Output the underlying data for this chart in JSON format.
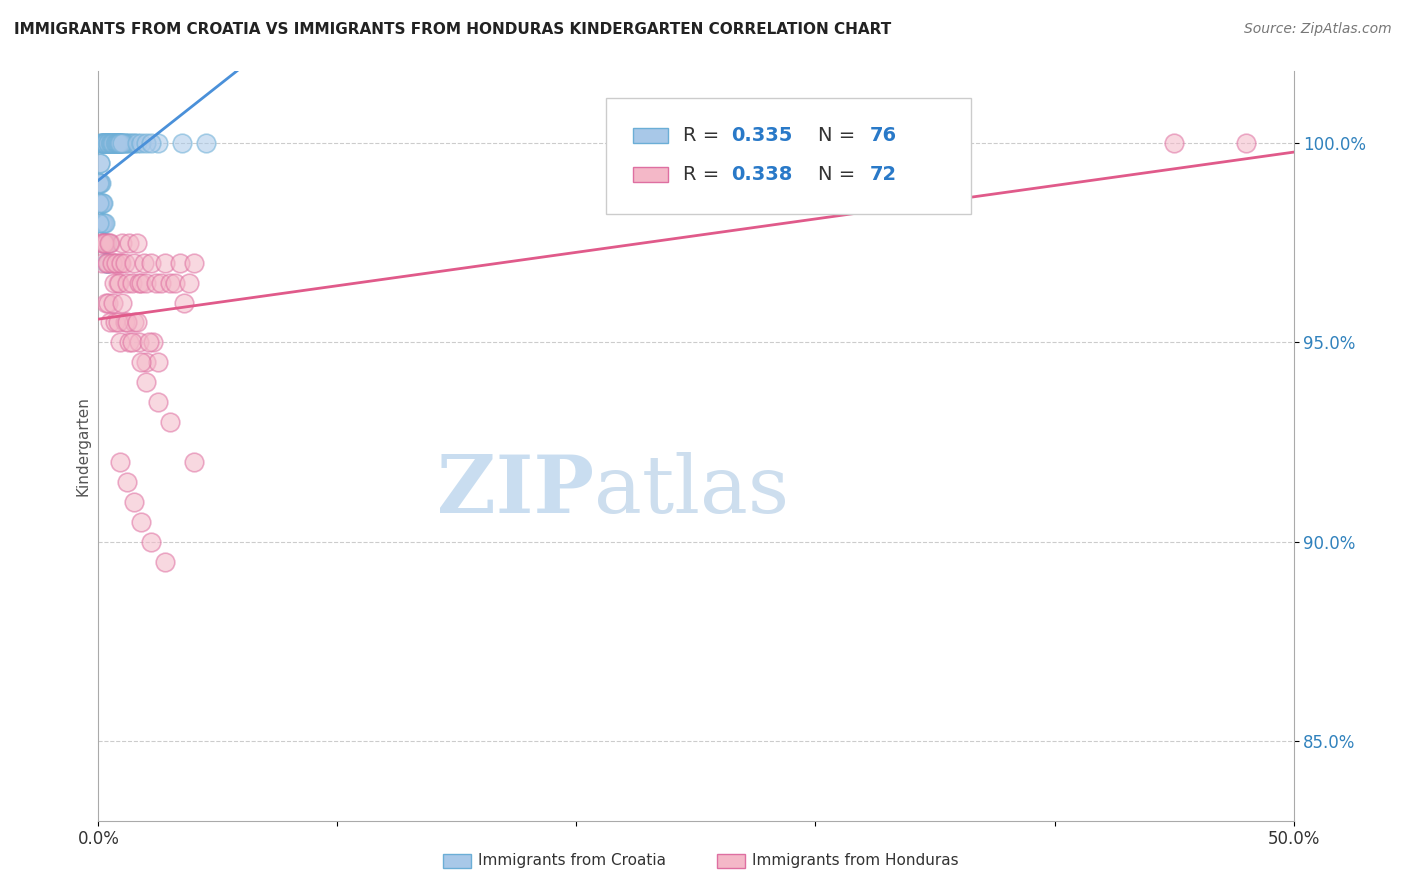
{
  "title": "IMMIGRANTS FROM CROATIA VS IMMIGRANTS FROM HONDURAS KINDERGARTEN CORRELATION CHART",
  "source": "Source: ZipAtlas.com",
  "ylabel": "Kindergarten",
  "x_min": 0.0,
  "x_max": 50.0,
  "y_min": 83.0,
  "y_max": 101.8,
  "y_ticks": [
    85.0,
    90.0,
    95.0,
    100.0
  ],
  "y_tick_labels": [
    "85.0%",
    "90.0%",
    "95.0%",
    "100.0%"
  ],
  "x_ticks": [
    0.0,
    10.0,
    20.0,
    30.0,
    40.0,
    50.0
  ],
  "x_tick_labels": [
    "0.0%",
    "",
    "",
    "",
    "",
    "50.0%"
  ],
  "croatia_color": "#a8c8e8",
  "croatia_edge_color": "#6baed6",
  "honduras_color": "#f4b8c8",
  "honduras_edge_color": "#de6fa1",
  "croatia_line_color": "#4a90d9",
  "honduras_line_color": "#e05a8a",
  "watermark_zip_color": "#c8dff0",
  "watermark_atlas_color": "#b8cfe8",
  "legend_r_color": "#333333",
  "legend_val_color": "#2979c8",
  "croatia_x": [
    0.2,
    0.3,
    0.4,
    0.5,
    0.6,
    0.7,
    0.8,
    0.9,
    1.0,
    1.1,
    1.2,
    1.3,
    1.4,
    1.5,
    0.1,
    0.15,
    0.25,
    0.35,
    0.45,
    0.55,
    0.65,
    0.75,
    0.85,
    0.95,
    1.05,
    0.12,
    0.18,
    0.22,
    0.28,
    0.32,
    0.38,
    0.42,
    0.48,
    0.52,
    0.58,
    0.62,
    0.68,
    0.72,
    0.78,
    0.82,
    0.88,
    0.92,
    0.98,
    0.05,
    0.06,
    0.07,
    0.08,
    0.09,
    0.11,
    0.13,
    0.14,
    0.16,
    0.17,
    0.19,
    0.21,
    0.23,
    0.24,
    0.26,
    0.27,
    0.29,
    0.31,
    0.33,
    0.36,
    0.37,
    0.39,
    2.5,
    3.5,
    4.5,
    0.04,
    0.03,
    0.02,
    1.6,
    1.8,
    2.0,
    2.2
  ],
  "croatia_y": [
    100.0,
    100.0,
    100.0,
    100.0,
    100.0,
    100.0,
    100.0,
    100.0,
    100.0,
    100.0,
    100.0,
    100.0,
    100.0,
    100.0,
    100.0,
    100.0,
    100.0,
    100.0,
    100.0,
    100.0,
    100.0,
    100.0,
    100.0,
    100.0,
    100.0,
    100.0,
    100.0,
    100.0,
    100.0,
    100.0,
    100.0,
    100.0,
    100.0,
    100.0,
    100.0,
    100.0,
    100.0,
    100.0,
    100.0,
    100.0,
    100.0,
    100.0,
    100.0,
    99.5,
    99.0,
    99.5,
    99.0,
    98.5,
    99.0,
    98.5,
    98.0,
    98.5,
    98.0,
    98.5,
    98.0,
    97.5,
    98.0,
    97.5,
    98.0,
    97.5,
    97.0,
    97.5,
    97.0,
    97.5,
    97.0,
    100.0,
    100.0,
    100.0,
    98.0,
    98.5,
    99.0,
    100.0,
    100.0,
    100.0,
    100.0
  ],
  "honduras_x": [
    0.1,
    0.2,
    0.3,
    0.4,
    0.5,
    0.6,
    0.7,
    0.8,
    0.9,
    1.0,
    0.15,
    0.25,
    0.35,
    0.45,
    0.55,
    0.65,
    0.75,
    0.85,
    0.95,
    1.1,
    1.2,
    1.3,
    1.4,
    1.5,
    1.6,
    1.7,
    1.8,
    1.9,
    2.0,
    2.2,
    2.4,
    2.6,
    2.8,
    3.0,
    3.2,
    3.4,
    3.6,
    3.8,
    4.0,
    0.3,
    0.5,
    0.7,
    0.9,
    1.1,
    1.3,
    1.5,
    1.7,
    2.0,
    2.3,
    0.4,
    0.6,
    0.8,
    1.0,
    1.2,
    1.4,
    1.6,
    2.1,
    2.5,
    1.8,
    2.0,
    2.5,
    3.0,
    4.0,
    0.9,
    1.2,
    1.5,
    1.8,
    2.2,
    2.8,
    45.0,
    48.0
  ],
  "honduras_y": [
    97.5,
    97.5,
    97.5,
    97.0,
    97.5,
    97.0,
    97.0,
    96.5,
    97.0,
    97.5,
    97.0,
    97.5,
    97.0,
    97.5,
    97.0,
    96.5,
    97.0,
    96.5,
    97.0,
    97.0,
    96.5,
    97.5,
    96.5,
    97.0,
    97.5,
    96.5,
    96.5,
    97.0,
    96.5,
    97.0,
    96.5,
    96.5,
    97.0,
    96.5,
    96.5,
    97.0,
    96.0,
    96.5,
    97.0,
    96.0,
    95.5,
    95.5,
    95.0,
    95.5,
    95.0,
    95.5,
    95.0,
    94.5,
    95.0,
    96.0,
    96.0,
    95.5,
    96.0,
    95.5,
    95.0,
    95.5,
    95.0,
    94.5,
    94.5,
    94.0,
    93.5,
    93.0,
    92.0,
    92.0,
    91.5,
    91.0,
    90.5,
    90.0,
    89.5,
    100.0,
    100.0
  ]
}
